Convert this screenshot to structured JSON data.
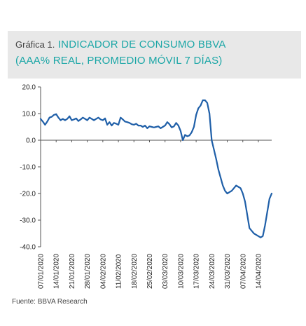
{
  "header": {
    "prefix": "Gráfica 1.",
    "title": "INDICADOR  DE CONSUMO  BBVA",
    "subtitle": "(AAA% REAL, PROMEDIO MÓVIL 7 DÍAS)"
  },
  "footer": {
    "source": "Fuente: BBVA Research"
  },
  "colors": {
    "line": "#1f5fa8",
    "title": "#1aa6a6",
    "title_bg": "#e8e8e8"
  },
  "chart_data": {
    "type": "line",
    "title": "INDICADOR  DE CONSUMO  BBVA",
    "subtitle": "(AAA% REAL, PROMEDIO MÓVIL 7 DÍAS)",
    "ylim": [
      -40,
      20
    ],
    "yticks": [
      20,
      10,
      0,
      -10,
      -20,
      -30,
      -40
    ],
    "ytick_labels": [
      "20.0",
      "10.0",
      "0.0",
      "-10.0",
      "-20.0",
      "-30.0",
      "-40.0"
    ],
    "xlim": [
      "2020-01-07",
      "2020-04-20"
    ],
    "xtick_labels": [
      "07/01/2020",
      "14/01/2020",
      "21/01/2020",
      "28/01/2020",
      "04/02/2020",
      "11/02/2020",
      "18/02/2020",
      "25/02/2020",
      "03/03/2020",
      "10/03/2020",
      "17/03/2020",
      "24/03/2020",
      "31/03/2020",
      "07/04/2020",
      "14/04/2020"
    ],
    "grid": false,
    "legend": "none",
    "series": [
      {
        "x": [
          "2020-01-07",
          "2020-01-08",
          "2020-01-09",
          "2020-01-10",
          "2020-01-11",
          "2020-01-12",
          "2020-01-13",
          "2020-01-14",
          "2020-01-15",
          "2020-01-16",
          "2020-01-17",
          "2020-01-18",
          "2020-01-19",
          "2020-01-20",
          "2020-01-21",
          "2020-01-22",
          "2020-01-23",
          "2020-01-24",
          "2020-01-25",
          "2020-01-26",
          "2020-01-27",
          "2020-01-28",
          "2020-01-29",
          "2020-01-30",
          "2020-01-31",
          "2020-02-01",
          "2020-02-02",
          "2020-02-03",
          "2020-02-04",
          "2020-02-05",
          "2020-02-06",
          "2020-02-07",
          "2020-02-08",
          "2020-02-09",
          "2020-02-10",
          "2020-02-11",
          "2020-02-12",
          "2020-02-13",
          "2020-02-14",
          "2020-02-15",
          "2020-02-16",
          "2020-02-17",
          "2020-02-18",
          "2020-02-19",
          "2020-02-20",
          "2020-02-21",
          "2020-02-22",
          "2020-02-23",
          "2020-02-24",
          "2020-02-25",
          "2020-02-26",
          "2020-02-27",
          "2020-02-28",
          "2020-02-29",
          "2020-03-01",
          "2020-03-02",
          "2020-03-03",
          "2020-03-04",
          "2020-03-05",
          "2020-03-06",
          "2020-03-07",
          "2020-03-08",
          "2020-03-09",
          "2020-03-10",
          "2020-03-11",
          "2020-03-12",
          "2020-03-13",
          "2020-03-14",
          "2020-03-15",
          "2020-03-16",
          "2020-03-17",
          "2020-03-18",
          "2020-03-19",
          "2020-03-20",
          "2020-03-21",
          "2020-03-22",
          "2020-03-23",
          "2020-03-24",
          "2020-03-25",
          "2020-03-26",
          "2020-03-27",
          "2020-03-28",
          "2020-03-29",
          "2020-03-30",
          "2020-03-31",
          "2020-04-01",
          "2020-04-02",
          "2020-04-03",
          "2020-04-04",
          "2020-04-05",
          "2020-04-06",
          "2020-04-07",
          "2020-04-08",
          "2020-04-09",
          "2020-04-10",
          "2020-04-11",
          "2020-04-12",
          "2020-04-13",
          "2020-04-14",
          "2020-04-15",
          "2020-04-16",
          "2020-04-17",
          "2020-04-18",
          "2020-04-19",
          "2020-04-20"
        ],
        "values": [
          8.0,
          7.0,
          5.8,
          7.0,
          8.5,
          8.8,
          9.5,
          9.8,
          8.5,
          7.5,
          8.0,
          7.5,
          8.0,
          9.0,
          7.5,
          7.8,
          8.2,
          7.2,
          7.8,
          8.5,
          8.0,
          7.5,
          8.5,
          8.0,
          7.5,
          8.0,
          8.5,
          7.8,
          7.5,
          8.2,
          5.8,
          6.8,
          5.5,
          6.5,
          6.2,
          5.8,
          8.5,
          7.8,
          7.0,
          6.8,
          6.5,
          6.0,
          5.8,
          6.2,
          5.5,
          5.5,
          5.0,
          5.5,
          4.5,
          5.2,
          5.0,
          4.8,
          5.0,
          5.2,
          4.5,
          5.0,
          5.5,
          6.8,
          6.0,
          4.8,
          5.2,
          6.5,
          5.5,
          3.5,
          0.0,
          2.0,
          1.5,
          1.8,
          3.0,
          5.0,
          9.5,
          12.0,
          13.0,
          15.0,
          15.0,
          14.0,
          10.0,
          0.0,
          -3.5,
          -7.0,
          -11.0,
          -14.0,
          -17.0,
          -19.0,
          -20.0,
          -19.5,
          -19.0,
          -18.0,
          -17.0,
          -17.5,
          -18.0,
          -20.0,
          -23.0,
          -28.0,
          -33.0,
          -34.0,
          -35.0,
          -35.5,
          -36.0,
          -36.5,
          -36.0,
          -32.0,
          -27.0,
          -22.0,
          -20.0
        ]
      }
    ]
  }
}
